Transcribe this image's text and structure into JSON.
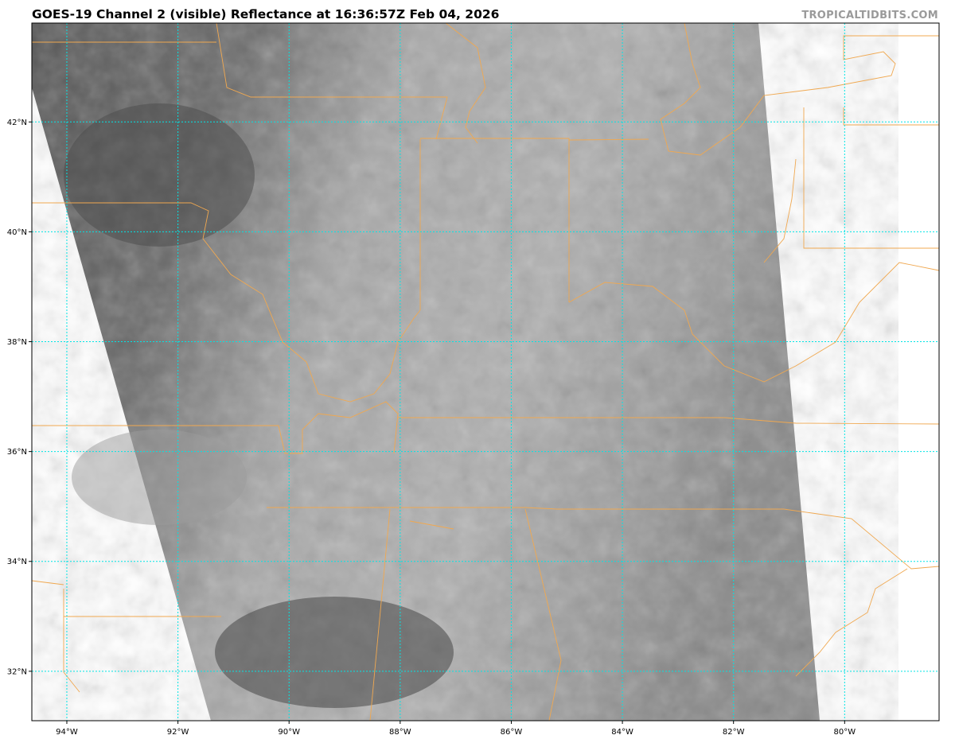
{
  "title": "GOES-19 Channel 2 (visible) Reflectance at 16:36:57Z Feb 04, 2026",
  "watermark": "TROPICALTIDBITS.COM",
  "map": {
    "lon_range": [
      -94.63,
      -78.3
    ],
    "lat_range": [
      31.1,
      43.8
    ],
    "gridlines": true,
    "lon_ticks": [
      {
        "value": -94,
        "label": "94°W"
      },
      {
        "value": -92,
        "label": "92°W"
      },
      {
        "value": -90,
        "label": "90°W"
      },
      {
        "value": -88,
        "label": "88°W"
      },
      {
        "value": -86,
        "label": "86°W"
      },
      {
        "value": -84,
        "label": "84°W"
      },
      {
        "value": -82,
        "label": "82°W"
      },
      {
        "value": -80,
        "label": "80°W"
      }
    ],
    "lat_ticks": [
      {
        "value": 42,
        "label": "42°N"
      },
      {
        "value": 40,
        "label": "40°N"
      },
      {
        "value": 38,
        "label": "38°N"
      },
      {
        "value": 36,
        "label": "36°N"
      },
      {
        "value": 34,
        "label": "34°N"
      },
      {
        "value": 32,
        "label": "32°N"
      }
    ]
  },
  "colors": {
    "gridline": "#00e5e5",
    "borders": "#f0a850",
    "imagery_dark": "#4a4a4a",
    "imagery_light": "#b8b8b8"
  }
}
